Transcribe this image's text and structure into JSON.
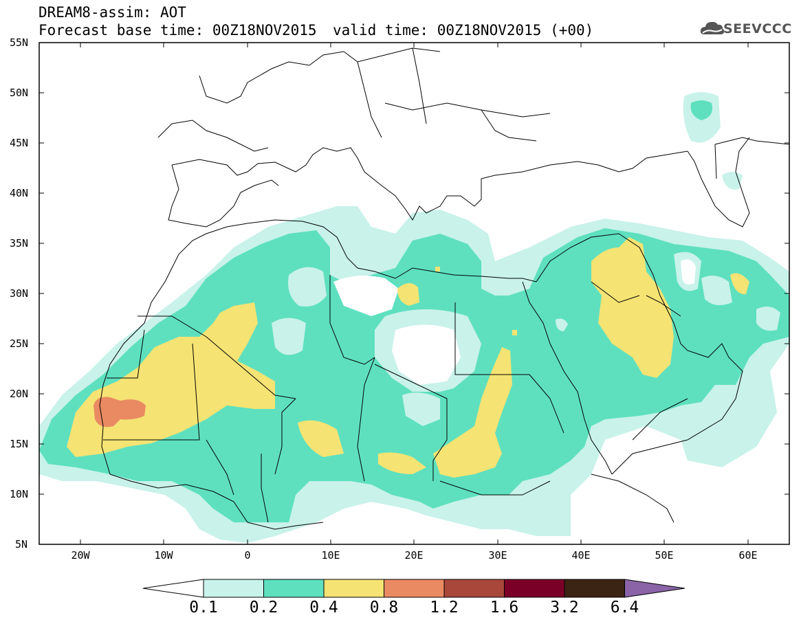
{
  "title": {
    "line1": "DREAM8-assim: AOT",
    "line2": "Forecast base time: 00Z18NOV2015",
    "valid": "valid time: 00Z18NOV2015 (+00)"
  },
  "logo": {
    "text": "SEEVCCC",
    "icon": "cloud-icon"
  },
  "map": {
    "lat_labels": [
      "55N",
      "50N",
      "45N",
      "40N",
      "35N",
      "30N",
      "25N",
      "20N",
      "15N",
      "10N",
      "5N"
    ],
    "lon_labels": [
      "20W",
      "10W",
      "0",
      "10E",
      "20E",
      "30E",
      "40E",
      "50E",
      "60E"
    ],
    "lon_range": [
      -25,
      65
    ],
    "lat_range": [
      5,
      55
    ]
  },
  "colorbar": {
    "labels": [
      "0.1",
      "0.2",
      "0.4",
      "0.8",
      "1.2",
      "1.6",
      "3.2",
      "6.4"
    ],
    "colors": [
      "#ffffff",
      "#c8f2ea",
      "#5ee0bf",
      "#f5e373",
      "#ea8a62",
      "#a8473a",
      "#7b0027",
      "#3b2414",
      "#8a64a6"
    ]
  },
  "legend_colors": {
    "c1": "#c8f2ea",
    "c2": "#5ee0bf",
    "c3": "#f5e373",
    "c4": "#ea8a62"
  }
}
